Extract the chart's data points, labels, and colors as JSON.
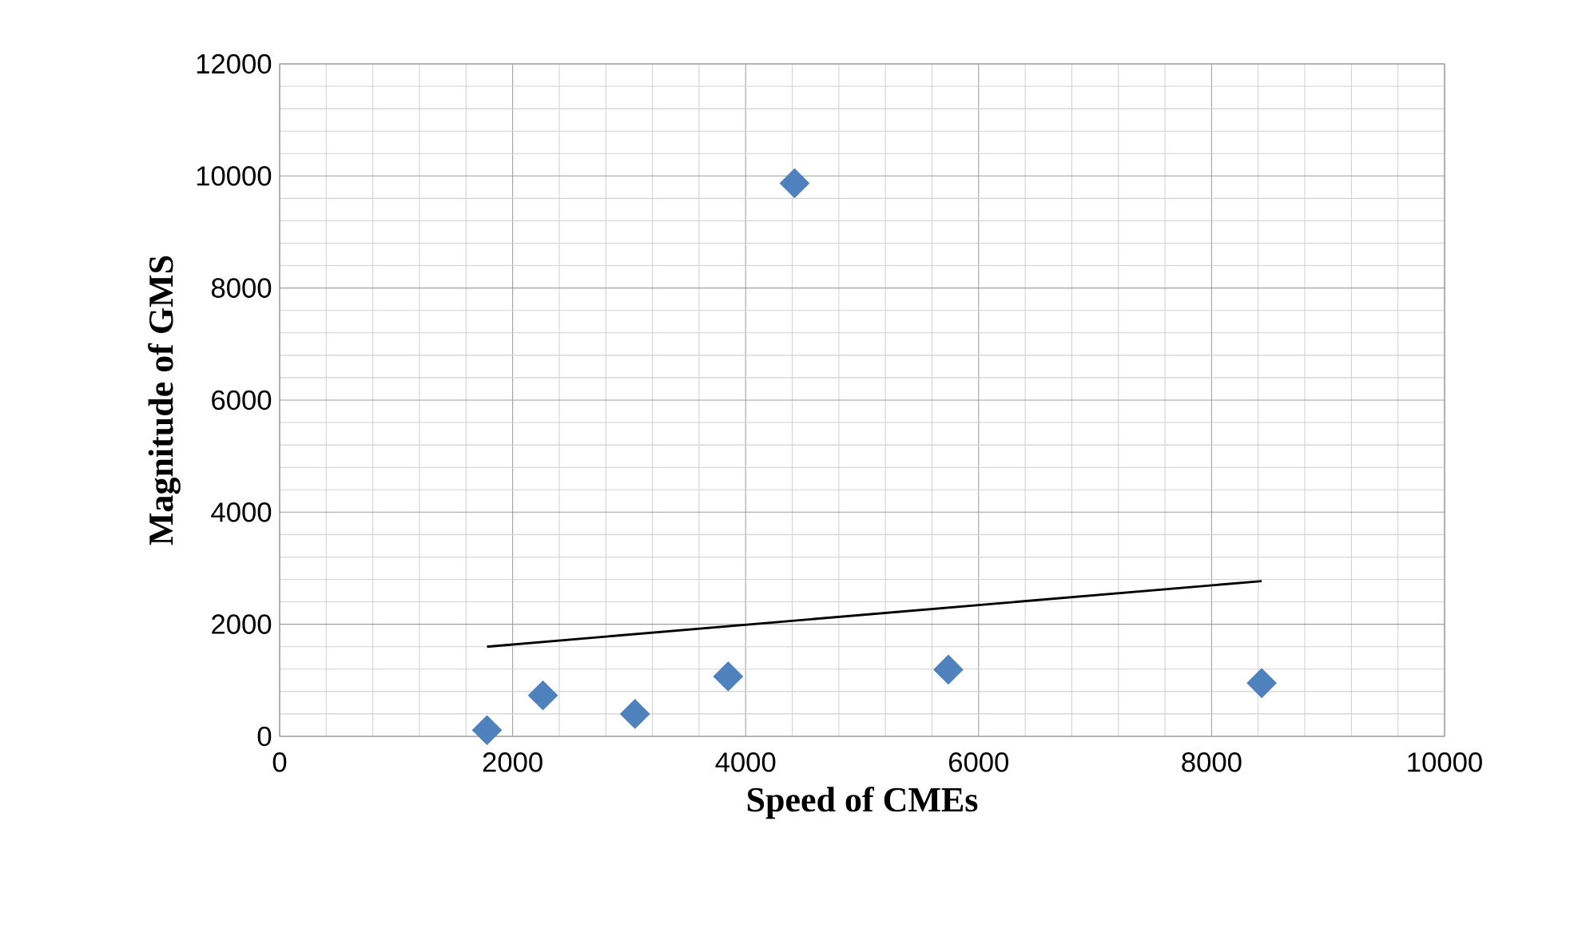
{
  "chart_data": {
    "type": "scatter",
    "xlabel": "Speed of CMEs",
    "ylabel": "Magnitude of GMS",
    "x": [
      1780,
      2260,
      3050,
      3850,
      4420,
      5740,
      8430
    ],
    "series": [
      {
        "color": "#4f81bd",
        "marker": "diamond",
        "values": [
          110,
          730,
          400,
          1070,
          9870,
          1190,
          950
        ]
      },
      {
        "type": "line",
        "color": "#000000",
        "x": [
          1780,
          8430
        ],
        "values": [
          1600,
          2770
        ]
      }
    ],
    "xlim": [
      0,
      10000
    ],
    "ylim": [
      0,
      12000
    ],
    "xticks": [
      0,
      2000,
      4000,
      6000,
      8000,
      10000
    ],
    "yticks": [
      0,
      2000,
      4000,
      6000,
      8000,
      10000,
      12000
    ],
    "grid": true
  }
}
